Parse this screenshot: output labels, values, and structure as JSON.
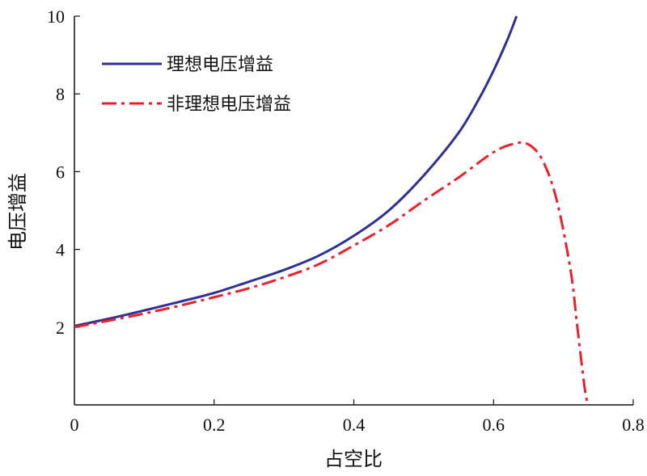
{
  "chart_data": {
    "type": "line",
    "title": "",
    "xlabel": "占空比",
    "ylabel": "电压增益",
    "xlim": [
      0,
      0.8
    ],
    "ylim": [
      0,
      10
    ],
    "xticks": [
      {
        "value": 0,
        "label": "0"
      },
      {
        "value": 0.2,
        "label": "0.2"
      },
      {
        "value": 0.4,
        "label": "0.4"
      },
      {
        "value": 0.6,
        "label": "0.6"
      },
      {
        "value": 0.8,
        "label": "0.8"
      }
    ],
    "yticks": [
      {
        "value": 2,
        "label": "2"
      },
      {
        "value": 4,
        "label": "4"
      },
      {
        "value": 6,
        "label": "6"
      },
      {
        "value": 8,
        "label": "8"
      },
      {
        "value": 10,
        "label": "10"
      }
    ],
    "grid": false,
    "legend_position": "top-left",
    "series": [
      {
        "name": "理想电压增益",
        "color": "#2e3192",
        "style": "solid",
        "x": [
          0,
          0.05,
          0.1,
          0.15,
          0.2,
          0.25,
          0.3,
          0.35,
          0.4,
          0.45,
          0.5,
          0.55,
          0.58,
          0.6,
          0.62,
          0.633
        ],
        "y": [
          2.03,
          2.22,
          2.43,
          2.65,
          2.88,
          3.17,
          3.47,
          3.84,
          4.35,
          5.0,
          5.9,
          7.0,
          7.9,
          8.6,
          9.4,
          10.0
        ]
      },
      {
        "name": "非理想电压增益",
        "color": "#e8212b",
        "style": "dashdot",
        "x": [
          0,
          0.05,
          0.1,
          0.15,
          0.2,
          0.25,
          0.3,
          0.35,
          0.4,
          0.45,
          0.5,
          0.55,
          0.6,
          0.63,
          0.65,
          0.67,
          0.69,
          0.71,
          0.72,
          0.73,
          0.735
        ],
        "y": [
          2.0,
          2.17,
          2.35,
          2.55,
          2.77,
          3.0,
          3.28,
          3.62,
          4.1,
          4.62,
          5.25,
          5.85,
          6.5,
          6.72,
          6.7,
          6.3,
          5.3,
          3.5,
          2.0,
          0.5,
          0
        ]
      }
    ]
  }
}
